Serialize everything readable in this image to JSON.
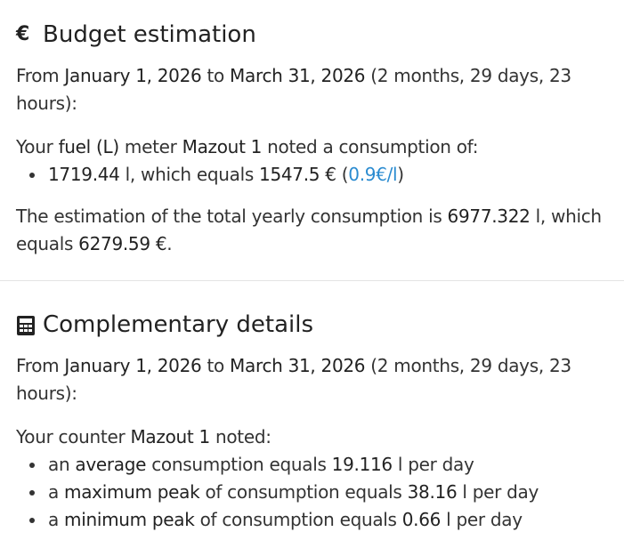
{
  "budget": {
    "title": "Budget estimation",
    "range": {
      "prefix": "From ",
      "start": "January 1, 2026",
      "to": " to ",
      "end": "March 31, 2026",
      "suffix": " (2 months, 29 days, 23 hours):"
    },
    "consumption": {
      "prefix": "Your ",
      "type": "fuel (L)",
      "mid": " meter ",
      "meter": "Mazout 1",
      "suffix": " noted a consumption of:"
    },
    "item": {
      "amount": "1719.44",
      "unit_text": " l, which equals ",
      "cost": "1547.5 €",
      "open": " (",
      "price": "0.9€/l",
      "close": ")"
    },
    "estimation": {
      "prefix": "The estimation of the total yearly consumption is ",
      "amount": "6977.322",
      "mid": " l, which equals ",
      "cost": "6279.59 €",
      "suffix": "."
    }
  },
  "details": {
    "title": "Complementary details",
    "range": {
      "prefix": "From ",
      "start": "January 1, 2026",
      "to": " to ",
      "end": "March 31, 2026",
      "suffix": " (2 months, 29 days, 23 hours):"
    },
    "counter": {
      "prefix": "Your counter ",
      "name": "Mazout 1",
      "suffix": " noted:"
    },
    "items": [
      {
        "pre": "an ",
        "key": "average",
        "mid": " consumption equals ",
        "value": "19.116",
        "post": " l per day"
      },
      {
        "pre": "a ",
        "key": "maximum peak",
        "mid": " of consumption equals ",
        "value": "38.16",
        "post": " l per day"
      },
      {
        "pre": "a ",
        "key": "minimum peak",
        "mid": " of consumption equals ",
        "value": "0.66",
        "post": " l per day"
      }
    ]
  }
}
